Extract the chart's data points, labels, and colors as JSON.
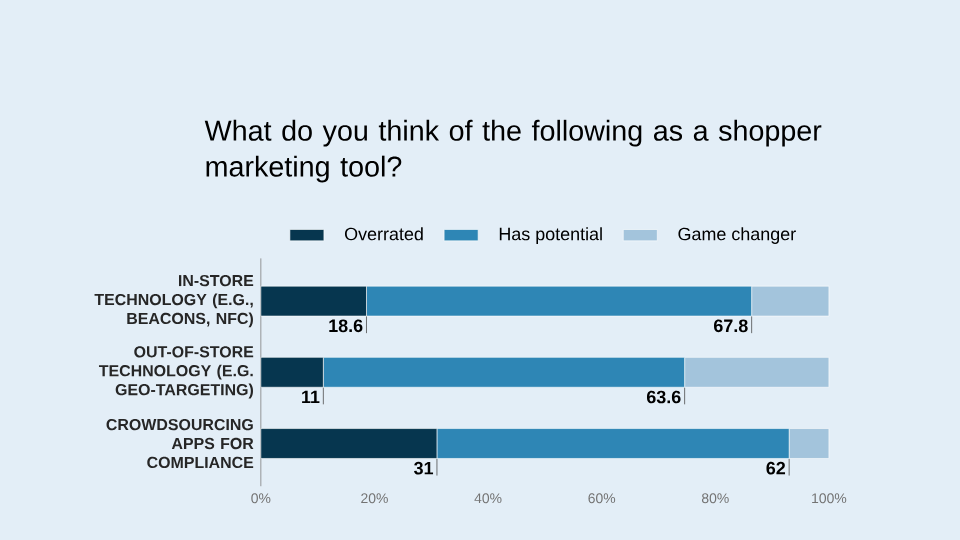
{
  "chart_data": {
    "type": "bar",
    "orientation": "horizontal",
    "stacked": true,
    "title": "What do you think of the following as a shopper marketing tool?",
    "categories": [
      "IN-STORE TECHNOLOGY (E.G., BEACONS, NFC)",
      "OUT-OF-STORE TECHNOLOGY (E.G. GEO-TARGETING)",
      "CROWDSOURCING APPS FOR COMPLIANCE"
    ],
    "series": [
      {
        "name": "Overrated",
        "color": "#06364f",
        "values": [
          18.6,
          11,
          31
        ],
        "value_labels": [
          "18.6",
          "11",
          "31"
        ]
      },
      {
        "name": "Has potential",
        "color": "#2e86b5",
        "values": [
          67.8,
          63.6,
          62
        ],
        "value_labels": [
          "67.8",
          "63.6",
          "62"
        ]
      },
      {
        "name": "Game changer",
        "color": "#a3c4dc",
        "values": [
          13.6,
          25.4,
          7
        ],
        "value_labels": [
          null,
          null,
          null
        ]
      }
    ],
    "xlim": [
      0,
      100
    ],
    "xticks": [
      {
        "value": 0,
        "label": "0%"
      },
      {
        "value": 20,
        "label": "20%"
      },
      {
        "value": 40,
        "label": "40%"
      },
      {
        "value": 60,
        "label": "60%"
      },
      {
        "value": 80,
        "label": "80%"
      },
      {
        "value": 100,
        "label": "100%"
      }
    ],
    "legend": "top"
  }
}
